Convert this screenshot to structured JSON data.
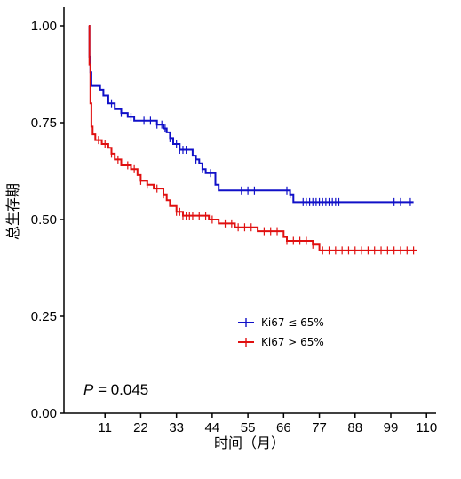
{
  "chart_data": {
    "type": "line",
    "subtype": "kaplan-meier",
    "ylabel": "总生存期",
    "xlabel": "时间（月）",
    "xlim": [
      0,
      113
    ],
    "ylim": [
      0,
      1.0
    ],
    "x_ticks": [
      11,
      22,
      33,
      44,
      55,
      66,
      77,
      88,
      99,
      110
    ],
    "y_ticks": [
      0.0,
      0.25,
      0.5,
      0.75,
      1.0
    ],
    "y_tick_labels": [
      "0.00",
      "0.25",
      "0.50",
      "0.75",
      "1.00"
    ],
    "legend_position": "inside-center-right",
    "annotation": {
      "p_label": "P",
      "p_value_text": " = 0.045"
    },
    "series": [
      {
        "name": "Ki67 ≤ 65%",
        "color": "#1010c8",
        "steps": [
          [
            6,
            1.0
          ],
          [
            6.2,
            0.92
          ],
          [
            6.5,
            0.88
          ],
          [
            6.8,
            0.845
          ],
          [
            9.5,
            0.835
          ],
          [
            10.5,
            0.82
          ],
          [
            12,
            0.8
          ],
          [
            14,
            0.785
          ],
          [
            16,
            0.775
          ],
          [
            18,
            0.765
          ],
          [
            20,
            0.755
          ],
          [
            27,
            0.745
          ],
          [
            29,
            0.735
          ],
          [
            30,
            0.725
          ],
          [
            31,
            0.71
          ],
          [
            32,
            0.695
          ],
          [
            34,
            0.68
          ],
          [
            38,
            0.665
          ],
          [
            39,
            0.655
          ],
          [
            40,
            0.645
          ],
          [
            41,
            0.63
          ],
          [
            42,
            0.62
          ],
          [
            45,
            0.59
          ],
          [
            46,
            0.575
          ],
          [
            68,
            0.565
          ],
          [
            69,
            0.545
          ],
          [
            106,
            0.545
          ]
        ],
        "censored": [
          13,
          16,
          19,
          23,
          25,
          27,
          28.5,
          29.5,
          31,
          33,
          34,
          35,
          36,
          39,
          41,
          43.5,
          53,
          55,
          57,
          67,
          68,
          72,
          73,
          74,
          75,
          76,
          77,
          78,
          79,
          80,
          81,
          82,
          83,
          100,
          102,
          105
        ]
      },
      {
        "name": "Ki67 > 65%",
        "color": "#e01010",
        "steps": [
          [
            6,
            1.0
          ],
          [
            6.2,
            0.9
          ],
          [
            6.5,
            0.8
          ],
          [
            6.8,
            0.74
          ],
          [
            7.2,
            0.72
          ],
          [
            8,
            0.705
          ],
          [
            10,
            0.695
          ],
          [
            12,
            0.685
          ],
          [
            13,
            0.67
          ],
          [
            14,
            0.655
          ],
          [
            16,
            0.64
          ],
          [
            19,
            0.63
          ],
          [
            21,
            0.615
          ],
          [
            22,
            0.6
          ],
          [
            24,
            0.59
          ],
          [
            26,
            0.58
          ],
          [
            29,
            0.565
          ],
          [
            30,
            0.55
          ],
          [
            31,
            0.535
          ],
          [
            33,
            0.52
          ],
          [
            35,
            0.51
          ],
          [
            43,
            0.5
          ],
          [
            46,
            0.49
          ],
          [
            51,
            0.48
          ],
          [
            58,
            0.47
          ],
          [
            66,
            0.455
          ],
          [
            67,
            0.445
          ],
          [
            75,
            0.435
          ],
          [
            77,
            0.42
          ],
          [
            107,
            0.42
          ]
        ],
        "censored": [
          9,
          11,
          13,
          15,
          18,
          20,
          22,
          24,
          27,
          29,
          33,
          34,
          35,
          36,
          37,
          38,
          40,
          42,
          44,
          48,
          50,
          52,
          54,
          56,
          60,
          62,
          64,
          67,
          69,
          71,
          73,
          75,
          78,
          80,
          82,
          84,
          86,
          88,
          90,
          92,
          94,
          96,
          98,
          100,
          102,
          104,
          106
        ]
      }
    ]
  }
}
